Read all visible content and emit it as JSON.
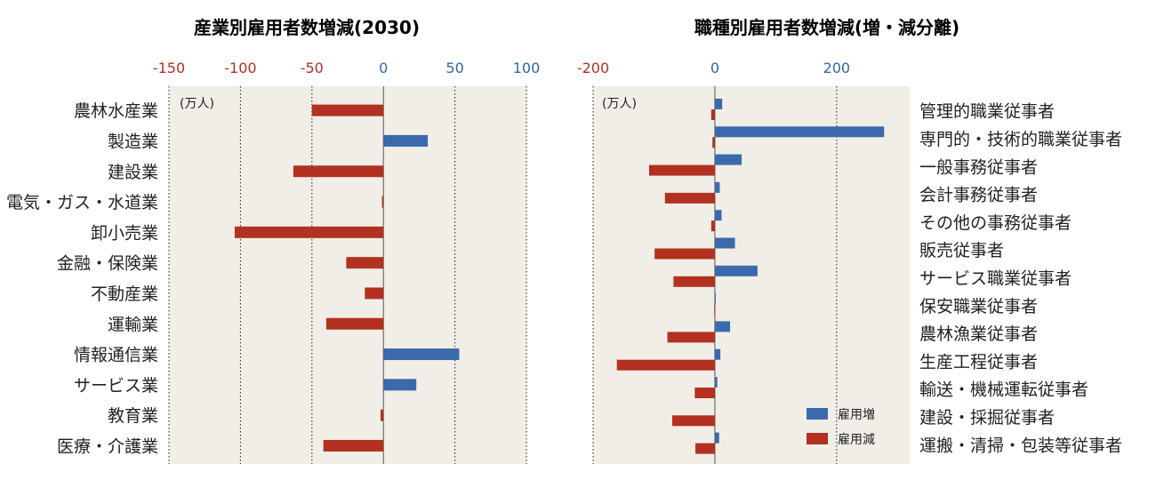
{
  "chart_data": [
    {
      "type": "bar",
      "orientation": "horizontal",
      "title": "産業別雇用者数増減(2030)",
      "unit_label": "(万人)",
      "xlim": [
        -150,
        100
      ],
      "xticks": [
        "-150",
        "-100",
        "-50",
        "0",
        "50",
        "100"
      ],
      "grid": true,
      "categories": [
        "農林水産業",
        "製造業",
        "建設業",
        "電気・ガス・水道業",
        "卸小売業",
        "金融・保険業",
        "不動産業",
        "運輸業",
        "情報通信業",
        "サービス業",
        "教育業",
        "医療・介護業"
      ],
      "values": [
        -50,
        31,
        -63,
        -1,
        -104,
        -26,
        -13,
        -40,
        53,
        23,
        -2,
        -42
      ]
    },
    {
      "type": "bar",
      "orientation": "horizontal",
      "title": "職種別雇用者数増減(増・減分離)",
      "unit_label": "(万人)",
      "xlim": [
        -200,
        320
      ],
      "xticks": [
        "-200",
        "0",
        "200"
      ],
      "grid": true,
      "legend_position": "bottom-right",
      "categories": [
        "管理的職業従事者",
        "専門的・技術的職業従事者",
        "一般事務従事者",
        "会計事務従事者",
        "その他の事務従事者",
        "販売従事者",
        "サービス職業従事者",
        "保安職業従事者",
        "農林漁業従事者",
        "生産工程従事者",
        "輸送・機械運転従事者",
        "建設・採掘従事者",
        "運搬・清掃・包装等従事者"
      ],
      "series": [
        {
          "name": "雇用増",
          "values": [
            12,
            278,
            44,
            8,
            11,
            33,
            70,
            1,
            25,
            9,
            4,
            0,
            7
          ]
        },
        {
          "name": "雇用減",
          "values": [
            -6,
            -4,
            -108,
            -82,
            -6,
            -99,
            -68,
            -1,
            -78,
            -161,
            -33,
            -70,
            -32
          ]
        }
      ]
    }
  ],
  "colors": {
    "increase": "#3a6aab",
    "decrease": "#b23121",
    "tick_negative": "#b33021",
    "tick_positive": "#3465a4",
    "plot_background": "#f0eee7"
  }
}
